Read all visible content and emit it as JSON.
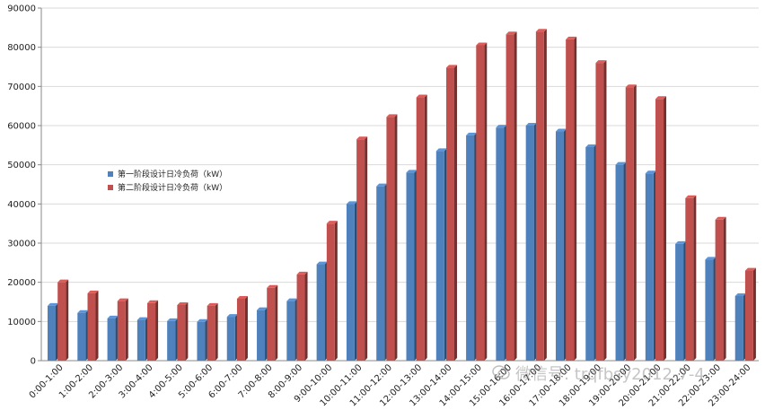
{
  "chart_data": {
    "type": "bar",
    "style": "3d-clustered-column",
    "categories": [
      "0:00-1:00",
      "1:00-2:00",
      "2:00-3:00",
      "3:00-4:00",
      "4:00-5:00",
      "5:00-6:00",
      "6:00-7:00",
      "7:00-8:00",
      "8:00-9:00",
      "9:00-10:00",
      "10:00-11:00",
      "11:00-12:00",
      "12:00-13:00",
      "13:00-14:00",
      "14:00-15:00",
      "15:00-16:00",
      "16:00-17:00",
      "17:00-18:00",
      "18:00-19:00",
      "19:00-20:00",
      "20:00-21:00",
      "21:00-22:00",
      "22:00-23:00",
      "23:00-24:00"
    ],
    "series": [
      {
        "name": "第一阶段设计日冷负荷（kW）",
        "color": "#4F81BD",
        "values": [
          14000,
          12200,
          10800,
          10400,
          10100,
          9900,
          11200,
          12900,
          15200,
          24600,
          40000,
          44500,
          48000,
          53500,
          57500,
          59500,
          60000,
          58500,
          54500,
          50000,
          47800,
          29800,
          25800,
          16500
        ]
      },
      {
        "name": "第二阶段设计日冷负荷（kW）",
        "color": "#C0504D",
        "values": [
          20000,
          17200,
          15200,
          14700,
          14200,
          14000,
          15800,
          18600,
          22000,
          35000,
          56500,
          62200,
          67200,
          74800,
          80500,
          83300,
          84000,
          82000,
          76000,
          69800,
          66800,
          41500,
          36000,
          23000
        ]
      }
    ],
    "ylim": [
      0,
      90000
    ],
    "yticks": [
      0,
      10000,
      20000,
      30000,
      40000,
      50000,
      60000,
      70000,
      80000,
      90000
    ],
    "ytick_labels": [
      "0",
      "10000",
      "20000",
      "30000",
      "40000",
      "50000",
      "60000",
      "70000",
      "80000",
      "90000"
    ],
    "grid": true,
    "legend_position": "left-center",
    "title": "",
    "xlabel": "",
    "ylabel": ""
  },
  "watermark": {
    "text": "微信号: trqfbsy2012-7-4"
  }
}
